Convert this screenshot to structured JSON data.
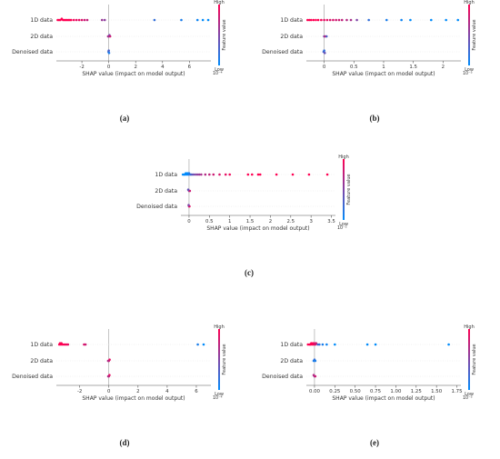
{
  "colors": {
    "high": "#ff0052",
    "low": "#008bfb",
    "axis": "#555555",
    "zero_line": "#999999"
  },
  "chart_data": [
    {
      "type": "scatter",
      "caption": "(a)",
      "categories": [
        "1D data",
        "2D data",
        "Denoised data"
      ],
      "xlabel": "SHAP value (impact on model output)",
      "xticks": [
        -2,
        0,
        2,
        4,
        6
      ],
      "xlim": [
        -3.9,
        7.6
      ],
      "exponent_label": "10⁻⁴",
      "colorbar": {
        "high": "High",
        "low": "Low",
        "title": "Feature value"
      },
      "points": [
        {
          "x": -3.8,
          "y": 0,
          "v": 1
        },
        {
          "x": -3.7,
          "y": 0,
          "v": 1
        },
        {
          "x": -3.6,
          "y": 0,
          "v": 1
        },
        {
          "x": -3.5,
          "y": 0,
          "v": 1
        },
        {
          "x": -3.4,
          "y": 0,
          "v": 1
        },
        {
          "x": -3.3,
          "y": 0,
          "v": 1
        },
        {
          "x": -3.2,
          "y": 0,
          "v": 1
        },
        {
          "x": -3.1,
          "y": 0,
          "v": 1
        },
        {
          "x": -3.0,
          "y": 0,
          "v": 1
        },
        {
          "x": -2.9,
          "y": 0,
          "v": 1
        },
        {
          "x": -2.8,
          "y": 0,
          "v": 1
        },
        {
          "x": -2.6,
          "y": 0,
          "v": 0.95
        },
        {
          "x": -2.4,
          "y": 0,
          "v": 0.9
        },
        {
          "x": -2.2,
          "y": 0,
          "v": 0.9
        },
        {
          "x": -2.0,
          "y": 0,
          "v": 0.85
        },
        {
          "x": -1.8,
          "y": 0,
          "v": 0.8
        },
        {
          "x": -1.6,
          "y": 0,
          "v": 0.75
        },
        {
          "x": -0.5,
          "y": 0,
          "v": 0.6
        },
        {
          "x": -0.3,
          "y": 0,
          "v": 0.55
        },
        {
          "x": 3.4,
          "y": 0,
          "v": 0.2
        },
        {
          "x": 5.4,
          "y": 0,
          "v": 0.1
        },
        {
          "x": 6.6,
          "y": 0,
          "v": 0.05
        },
        {
          "x": 7.0,
          "y": 0,
          "v": 0
        },
        {
          "x": 7.4,
          "y": 0,
          "v": 0
        },
        {
          "x": -0.05,
          "y": 1,
          "v": 0.7
        },
        {
          "x": 0.0,
          "y": 1,
          "v": 0.6
        },
        {
          "x": 0.05,
          "y": 1,
          "v": 0.5
        },
        {
          "x": 0.1,
          "y": 1,
          "v": 0.8
        },
        {
          "x": -0.02,
          "y": 2,
          "v": 0.2
        },
        {
          "x": 0.0,
          "y": 2,
          "v": 0.3
        },
        {
          "x": 0.02,
          "y": 2,
          "v": 0.1
        }
      ]
    },
    {
      "type": "scatter",
      "caption": "(b)",
      "categories": [
        "1D data",
        "2D data",
        "Denoised data"
      ],
      "xlabel": "SHAP value (impact on model output)",
      "xticks": [
        0.0,
        0.5,
        1.0,
        1.5,
        2.0
      ],
      "xlim": [
        -0.3,
        2.3
      ],
      "exponent_label": "10⁻⁵",
      "colorbar": {
        "high": "High",
        "low": "Low",
        "title": "Feature value"
      },
      "points": [
        {
          "x": -0.28,
          "y": 0,
          "v": 1
        },
        {
          "x": -0.25,
          "y": 0,
          "v": 1
        },
        {
          "x": -0.22,
          "y": 0,
          "v": 1
        },
        {
          "x": -0.18,
          "y": 0,
          "v": 1
        },
        {
          "x": -0.14,
          "y": 0,
          "v": 1
        },
        {
          "x": -0.1,
          "y": 0,
          "v": 1
        },
        {
          "x": -0.05,
          "y": 0,
          "v": 0.95
        },
        {
          "x": 0.0,
          "y": 0,
          "v": 0.9
        },
        {
          "x": 0.05,
          "y": 0,
          "v": 0.9
        },
        {
          "x": 0.1,
          "y": 0,
          "v": 0.85
        },
        {
          "x": 0.15,
          "y": 0,
          "v": 0.85
        },
        {
          "x": 0.2,
          "y": 0,
          "v": 0.8
        },
        {
          "x": 0.25,
          "y": 0,
          "v": 0.8
        },
        {
          "x": 0.3,
          "y": 0,
          "v": 0.75
        },
        {
          "x": 0.38,
          "y": 0,
          "v": 0.7
        },
        {
          "x": 0.45,
          "y": 0,
          "v": 0.65
        },
        {
          "x": 0.55,
          "y": 0,
          "v": 0.5
        },
        {
          "x": 0.75,
          "y": 0,
          "v": 0.2
        },
        {
          "x": 1.05,
          "y": 0,
          "v": 0.1
        },
        {
          "x": 1.3,
          "y": 0,
          "v": 0.05
        },
        {
          "x": 1.45,
          "y": 0,
          "v": 0
        },
        {
          "x": 1.8,
          "y": 0,
          "v": 0
        },
        {
          "x": 2.05,
          "y": 0,
          "v": 0
        },
        {
          "x": 2.25,
          "y": 0,
          "v": 0
        },
        {
          "x": 0.0,
          "y": 1,
          "v": 0.5
        },
        {
          "x": 0.02,
          "y": 1,
          "v": 0.8
        },
        {
          "x": 0.04,
          "y": 1,
          "v": 0.3
        },
        {
          "x": -0.01,
          "y": 2,
          "v": 0.3
        },
        {
          "x": 0.0,
          "y": 2,
          "v": 0.2
        },
        {
          "x": 0.01,
          "y": 2,
          "v": 0.4
        }
      ]
    },
    {
      "type": "scatter",
      "caption": "(c)",
      "categories": [
        "1D data",
        "2D data",
        "Denoised data"
      ],
      "xlabel": "SHAP value (impact on model output)",
      "xticks": [
        0.0,
        0.5,
        1.0,
        1.5,
        2.0,
        2.5,
        3.0,
        3.5
      ],
      "xlim": [
        -0.2,
        3.6
      ],
      "exponent_label": "10⁻⁵",
      "colorbar": {
        "high": "High",
        "low": "Low",
        "title": "Feature value"
      },
      "points": [
        {
          "x": -0.15,
          "y": 0,
          "v": 0
        },
        {
          "x": -0.12,
          "y": 0,
          "v": 0
        },
        {
          "x": -0.1,
          "y": 0,
          "v": 0
        },
        {
          "x": -0.08,
          "y": 0,
          "v": 0
        },
        {
          "x": -0.06,
          "y": 0,
          "v": 0
        },
        {
          "x": -0.04,
          "y": 0,
          "v": 0
        },
        {
          "x": -0.02,
          "y": 0,
          "v": 0.05
        },
        {
          "x": 0.0,
          "y": 0,
          "v": 0.1
        },
        {
          "x": 0.03,
          "y": 0,
          "v": 0.2
        },
        {
          "x": 0.06,
          "y": 0,
          "v": 0.3
        },
        {
          "x": 0.1,
          "y": 0,
          "v": 0.4
        },
        {
          "x": 0.15,
          "y": 0,
          "v": 0.5
        },
        {
          "x": 0.2,
          "y": 0,
          "v": 0.55
        },
        {
          "x": 0.25,
          "y": 0,
          "v": 0.6
        },
        {
          "x": 0.3,
          "y": 0,
          "v": 0.65
        },
        {
          "x": 0.4,
          "y": 0,
          "v": 0.7
        },
        {
          "x": 0.5,
          "y": 0,
          "v": 0.75
        },
        {
          "x": 0.6,
          "y": 0,
          "v": 0.8
        },
        {
          "x": 0.75,
          "y": 0,
          "v": 0.85
        },
        {
          "x": 0.9,
          "y": 0,
          "v": 0.9
        },
        {
          "x": 1.0,
          "y": 0,
          "v": 0.95
        },
        {
          "x": 1.45,
          "y": 0,
          "v": 1
        },
        {
          "x": 1.55,
          "y": 0,
          "v": 1
        },
        {
          "x": 1.7,
          "y": 0,
          "v": 1
        },
        {
          "x": 1.75,
          "y": 0,
          "v": 1
        },
        {
          "x": 2.15,
          "y": 0,
          "v": 1
        },
        {
          "x": 2.55,
          "y": 0,
          "v": 1
        },
        {
          "x": 2.95,
          "y": 0,
          "v": 1
        },
        {
          "x": 3.4,
          "y": 0,
          "v": 1
        },
        {
          "x": 0.0,
          "y": 1,
          "v": 0.6
        },
        {
          "x": 0.02,
          "y": 1,
          "v": 0.8
        },
        {
          "x": -0.02,
          "y": 1,
          "v": 0.4
        },
        {
          "x": 0.0,
          "y": 2,
          "v": 0.7
        },
        {
          "x": 0.01,
          "y": 2,
          "v": 0.9
        },
        {
          "x": -0.01,
          "y": 2,
          "v": 0.5
        }
      ]
    },
    {
      "type": "scatter",
      "caption": "(d)",
      "categories": [
        "1D data",
        "2D data",
        "Denoised data"
      ],
      "xlabel": "SHAP value (impact on model output)",
      "xticks": [
        -2,
        0,
        2,
        4,
        6
      ],
      "xlim": [
        -3.6,
        7.0
      ],
      "exponent_label": "10⁻⁴",
      "colorbar": {
        "high": "High",
        "low": "Low",
        "title": "Feature value"
      },
      "points": [
        {
          "x": -3.4,
          "y": 0,
          "v": 1
        },
        {
          "x": -3.35,
          "y": 0,
          "v": 1
        },
        {
          "x": -3.3,
          "y": 0,
          "v": 1
        },
        {
          "x": -3.25,
          "y": 0,
          "v": 1
        },
        {
          "x": -3.2,
          "y": 0,
          "v": 1
        },
        {
          "x": -3.1,
          "y": 0,
          "v": 1
        },
        {
          "x": -3.0,
          "y": 0,
          "v": 0.95
        },
        {
          "x": -2.9,
          "y": 0,
          "v": 0.95
        },
        {
          "x": -2.8,
          "y": 0,
          "v": 0.9
        },
        {
          "x": -1.7,
          "y": 0,
          "v": 0.85
        },
        {
          "x": -1.6,
          "y": 0,
          "v": 0.8
        },
        {
          "x": 6.1,
          "y": 0,
          "v": 0.1
        },
        {
          "x": 6.5,
          "y": 0,
          "v": 0
        },
        {
          "x": 0.0,
          "y": 1,
          "v": 0.8
        },
        {
          "x": 0.05,
          "y": 1,
          "v": 0.9
        },
        {
          "x": -0.05,
          "y": 1,
          "v": 0.7
        },
        {
          "x": 0.0,
          "y": 2,
          "v": 0.8
        },
        {
          "x": 0.04,
          "y": 2,
          "v": 0.9
        },
        {
          "x": -0.04,
          "y": 2,
          "v": 0.7
        }
      ]
    },
    {
      "type": "scatter",
      "caption": "(e)",
      "categories": [
        "1D data",
        "2D data",
        "Denoised data"
      ],
      "xlabel": "SHAP value (impact on model output)",
      "xticks": [
        0.0,
        0.25,
        0.5,
        0.75,
        1.0,
        1.25,
        1.5,
        1.75
      ],
      "xticklabels": [
        "0.00",
        "0.25",
        "0.50",
        "0.75",
        "1.00",
        "1.25",
        "1.50",
        "1.75"
      ],
      "xlim": [
        -0.1,
        1.8
      ],
      "exponent_label": "10⁻⁵",
      "colorbar": {
        "high": "High",
        "low": "Low",
        "title": "Feature value"
      },
      "points": [
        {
          "x": -0.08,
          "y": 0,
          "v": 1
        },
        {
          "x": -0.06,
          "y": 0,
          "v": 1
        },
        {
          "x": -0.05,
          "y": 0,
          "v": 1
        },
        {
          "x": -0.04,
          "y": 0,
          "v": 1
        },
        {
          "x": -0.03,
          "y": 0,
          "v": 1
        },
        {
          "x": -0.02,
          "y": 0,
          "v": 1
        },
        {
          "x": -0.01,
          "y": 0,
          "v": 0.95
        },
        {
          "x": 0.0,
          "y": 0,
          "v": 0.9
        },
        {
          "x": 0.01,
          "y": 0,
          "v": 0.85
        },
        {
          "x": 0.02,
          "y": 0,
          "v": 0.8
        },
        {
          "x": 0.04,
          "y": 0,
          "v": 0.3
        },
        {
          "x": 0.06,
          "y": 0,
          "v": 0.2
        },
        {
          "x": 0.1,
          "y": 0,
          "v": 0.1
        },
        {
          "x": 0.15,
          "y": 0,
          "v": 0.05
        },
        {
          "x": 0.25,
          "y": 0,
          "v": 0
        },
        {
          "x": 0.65,
          "y": 0,
          "v": 0
        },
        {
          "x": 0.75,
          "y": 0,
          "v": 0
        },
        {
          "x": 1.65,
          "y": 0,
          "v": 0
        },
        {
          "x": -0.01,
          "y": 1,
          "v": 0.1
        },
        {
          "x": 0.0,
          "y": 1,
          "v": 0.2
        },
        {
          "x": 0.01,
          "y": 1,
          "v": 0.1
        },
        {
          "x": 0.0,
          "y": 2,
          "v": 0.6
        },
        {
          "x": 0.01,
          "y": 2,
          "v": 0.8
        },
        {
          "x": -0.01,
          "y": 2,
          "v": 0.7
        }
      ]
    }
  ]
}
